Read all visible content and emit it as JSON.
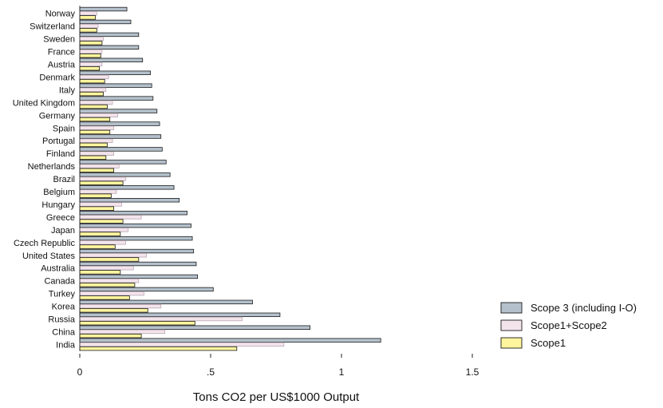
{
  "chart_data": {
    "type": "bar",
    "orientation": "horizontal",
    "xlabel": "Tons CO2 per US$1000 Output",
    "xlim": [
      0,
      1.5
    ],
    "xticks": [
      {
        "value": 0,
        "label": "0"
      },
      {
        "value": 0.5,
        "label": ".5"
      },
      {
        "value": 1,
        "label": "1"
      },
      {
        "value": 1.5,
        "label": "1.5"
      }
    ],
    "legend_position": "right",
    "categories": [
      "Norway",
      "Switzerland",
      "Sweden",
      "France",
      "Austria",
      "Denmark",
      "Italy",
      "United Kingdom",
      "Germany",
      "Spain",
      "Portugal",
      "Finland",
      "Netherlands",
      "Brazil",
      "Belgium",
      "Hungary",
      "Greece",
      "Japan",
      "Czech Republic",
      "United States",
      "Australia",
      "Canada",
      "Turkey",
      "Korea",
      "Russia",
      "China",
      "India"
    ],
    "series": [
      {
        "name": "Scope 3 (including I-O)",
        "color": "#b4c1cc",
        "values": [
          0.18,
          0.195,
          0.225,
          0.225,
          0.24,
          0.27,
          0.275,
          0.28,
          0.295,
          0.305,
          0.31,
          0.315,
          0.33,
          0.345,
          0.36,
          0.38,
          0.41,
          0.425,
          0.43,
          0.435,
          0.445,
          0.45,
          0.51,
          0.66,
          0.765,
          0.88,
          1.15
        ]
      },
      {
        "name": "Scope1+Scope2",
        "color": "#f3e4ec",
        "values": [
          0.065,
          0.07,
          0.09,
          0.085,
          0.085,
          0.11,
          0.1,
          0.125,
          0.145,
          0.13,
          0.125,
          0.13,
          0.15,
          0.175,
          0.14,
          0.16,
          0.235,
          0.185,
          0.175,
          0.255,
          0.205,
          0.225,
          0.245,
          0.31,
          0.62,
          0.325,
          0.78
        ]
      },
      {
        "name": "Scope1",
        "color": "#fff59e",
        "values": [
          0.06,
          0.065,
          0.085,
          0.08,
          0.075,
          0.095,
          0.09,
          0.105,
          0.115,
          0.115,
          0.105,
          0.1,
          0.13,
          0.165,
          0.12,
          0.13,
          0.165,
          0.155,
          0.135,
          0.225,
          0.155,
          0.21,
          0.19,
          0.26,
          0.44,
          0.235,
          0.6
        ]
      }
    ]
  }
}
